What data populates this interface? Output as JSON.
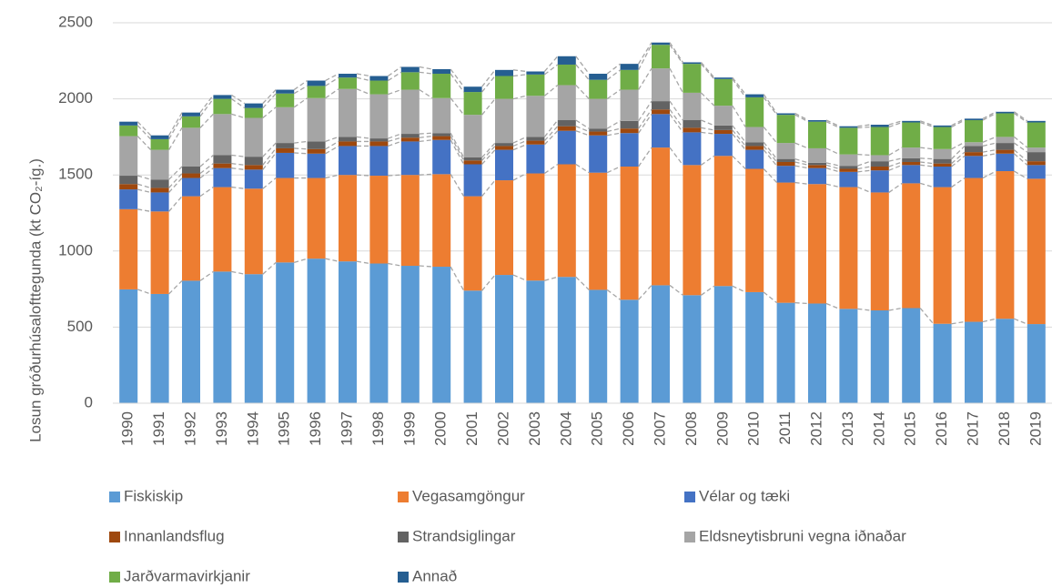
{
  "chart_data": {
    "type": "stacked_bar",
    "y_label": "Losun gróðurhúsalofttegunda (kt CO₂-íg.)",
    "categories": [
      "1990",
      "1991",
      "1992",
      "1993",
      "1994",
      "1995",
      "1996",
      "1997",
      "1998",
      "1999",
      "2000",
      "2001",
      "2002",
      "2003",
      "2004",
      "2005",
      "2006",
      "2007",
      "2008",
      "2009",
      "2010",
      "2011",
      "2012",
      "2013",
      "2014",
      "2015",
      "2016",
      "2017",
      "2018",
      "2019"
    ],
    "series": [
      {
        "name": "Fiskiskip",
        "color": "#5b9bd5",
        "values": [
          748,
          718,
          805,
          865,
          848,
          925,
          950,
          932,
          918,
          903,
          897,
          740,
          843,
          806,
          830,
          745,
          680,
          775,
          710,
          770,
          730,
          660,
          655,
          620,
          610,
          625,
          522,
          535,
          555,
          520
        ]
      },
      {
        "name": "Vegasamgöngur",
        "color": "#ed7d31",
        "values": [
          527,
          542,
          555,
          555,
          562,
          555,
          530,
          568,
          577,
          597,
          608,
          620,
          622,
          704,
          740,
          770,
          875,
          905,
          855,
          855,
          810,
          790,
          785,
          800,
          775,
          820,
          898,
          945,
          970,
          955
        ]
      },
      {
        "name": "Vélar og tæki",
        "color": "#4472c4",
        "values": [
          130,
          125,
          120,
          125,
          125,
          165,
          160,
          190,
          195,
          220,
          225,
          210,
          200,
          190,
          220,
          245,
          220,
          220,
          215,
          145,
          125,
          110,
          105,
          100,
          145,
          120,
          135,
          145,
          115,
          90
        ]
      },
      {
        "name": "Innanlandsflug",
        "color": "#9e480e",
        "values": [
          35,
          30,
          30,
          30,
          30,
          30,
          30,
          30,
          30,
          25,
          25,
          25,
          25,
          25,
          30,
          25,
          30,
          30,
          30,
          25,
          25,
          25,
          20,
          20,
          25,
          20,
          20,
          25,
          25,
          25
        ]
      },
      {
        "name": "Strandsiglingar",
        "color": "#636363",
        "values": [
          55,
          55,
          45,
          55,
          55,
          35,
          50,
          30,
          20,
          25,
          20,
          20,
          20,
          25,
          40,
          20,
          50,
          55,
          50,
          30,
          25,
          20,
          15,
          20,
          35,
          25,
          30,
          40,
          45,
          60
        ]
      },
      {
        "name": "Eldsneytisbruni vegna iðnaðar",
        "color": "#a5a5a5",
        "values": [
          260,
          195,
          255,
          270,
          255,
          235,
          285,
          315,
          290,
          290,
          230,
          280,
          290,
          270,
          230,
          195,
          205,
          215,
          180,
          130,
          100,
          105,
          95,
          75,
          40,
          70,
          65,
          25,
          40,
          30
        ]
      },
      {
        "name": "Jarðvarmavirkjanir",
        "color": "#70ad47",
        "values": [
          70,
          70,
          75,
          100,
          65,
          90,
          80,
          75,
          90,
          115,
          160,
          150,
          150,
          140,
          135,
          125,
          130,
          155,
          190,
          175,
          195,
          185,
          175,
          175,
          185,
          165,
          145,
          145,
          155,
          165
        ]
      },
      {
        "name": "Annað",
        "color": "#255e91",
        "values": [
          25,
          25,
          25,
          25,
          30,
          25,
          35,
          25,
          30,
          35,
          30,
          35,
          40,
          20,
          55,
          40,
          40,
          15,
          10,
          10,
          20,
          10,
          10,
          10,
          15,
          10,
          10,
          10,
          10,
          10
        ]
      }
    ],
    "ylim": [
      0,
      2500
    ],
    "yticks": [
      0,
      500,
      1000,
      1500,
      2000,
      2500
    ],
    "grid": true
  }
}
